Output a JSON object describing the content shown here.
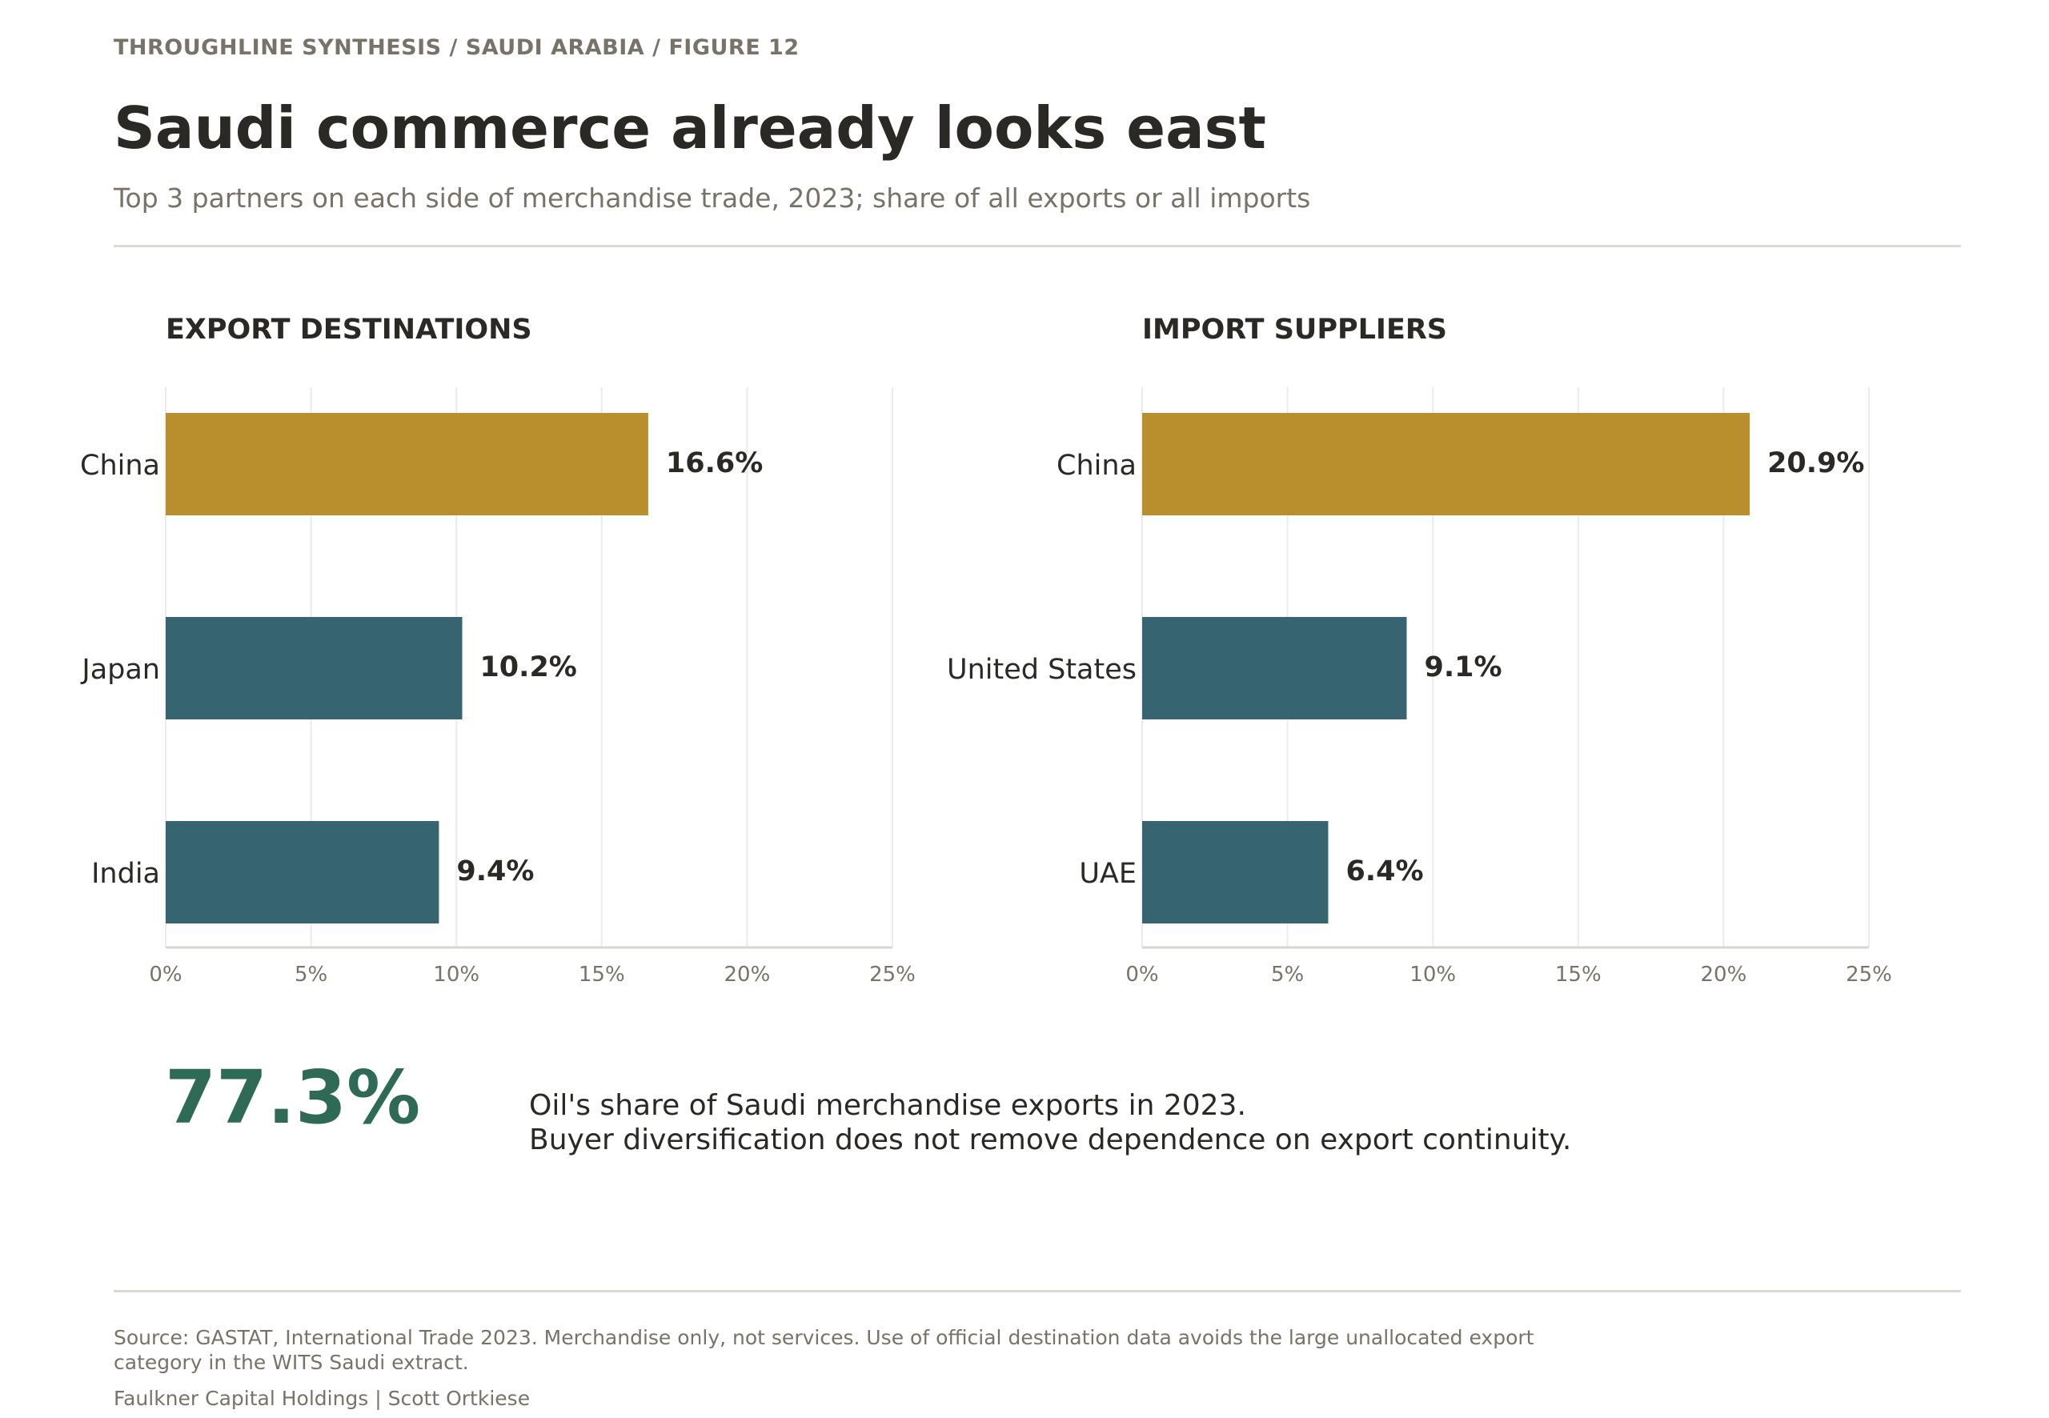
{
  "header": {
    "kicker": "THROUGHLINE SYNTHESIS / SAUDI ARABIA / FIGURE 12",
    "title": "Saudi commerce already looks east",
    "subtitle": "Top 3 partners on each side of merchandise trade, 2023; share of all exports or all imports"
  },
  "colors": {
    "highlight": "#b98f2e",
    "default_bar": "#366571",
    "stat_green": "#2e6a55"
  },
  "chart_data": [
    {
      "type": "bar",
      "orientation": "horizontal",
      "title": "EXPORT DESTINATIONS",
      "categories": [
        "China",
        "Japan",
        "India"
      ],
      "values": [
        16.6,
        10.2,
        9.4
      ],
      "value_labels": [
        "16.6%",
        "10.2%",
        "9.4%"
      ],
      "highlight_index": 0,
      "xlim": [
        0,
        25
      ],
      "xticks": [
        0,
        5,
        10,
        15,
        20,
        25
      ],
      "xtick_labels": [
        "0%",
        "5%",
        "10%",
        "15%",
        "20%",
        "25%"
      ],
      "grid": "vertical"
    },
    {
      "type": "bar",
      "orientation": "horizontal",
      "title": "IMPORT SUPPLIERS",
      "categories": [
        "China",
        "United States",
        "UAE"
      ],
      "values": [
        20.9,
        9.1,
        6.4
      ],
      "value_labels": [
        "20.9%",
        "9.1%",
        "6.4%"
      ],
      "highlight_index": 0,
      "xlim": [
        0,
        25
      ],
      "xticks": [
        0,
        5,
        10,
        15,
        20,
        25
      ],
      "xtick_labels": [
        "0%",
        "5%",
        "10%",
        "15%",
        "20%",
        "25%"
      ],
      "grid": "vertical"
    }
  ],
  "callout": {
    "value": "77.3%",
    "line1": "Oil's share of Saudi merchandise exports in 2023.",
    "line2": "Buyer diversification does not remove dependence on export continuity."
  },
  "footer": {
    "source": "Source: GASTAT, International Trade 2023. Merchandise only, not services. Use of official destination data avoids the large unallocated export category in the WITS Saudi extract.",
    "credit": "Faulkner Capital Holdings | Scott Ortkiese"
  }
}
